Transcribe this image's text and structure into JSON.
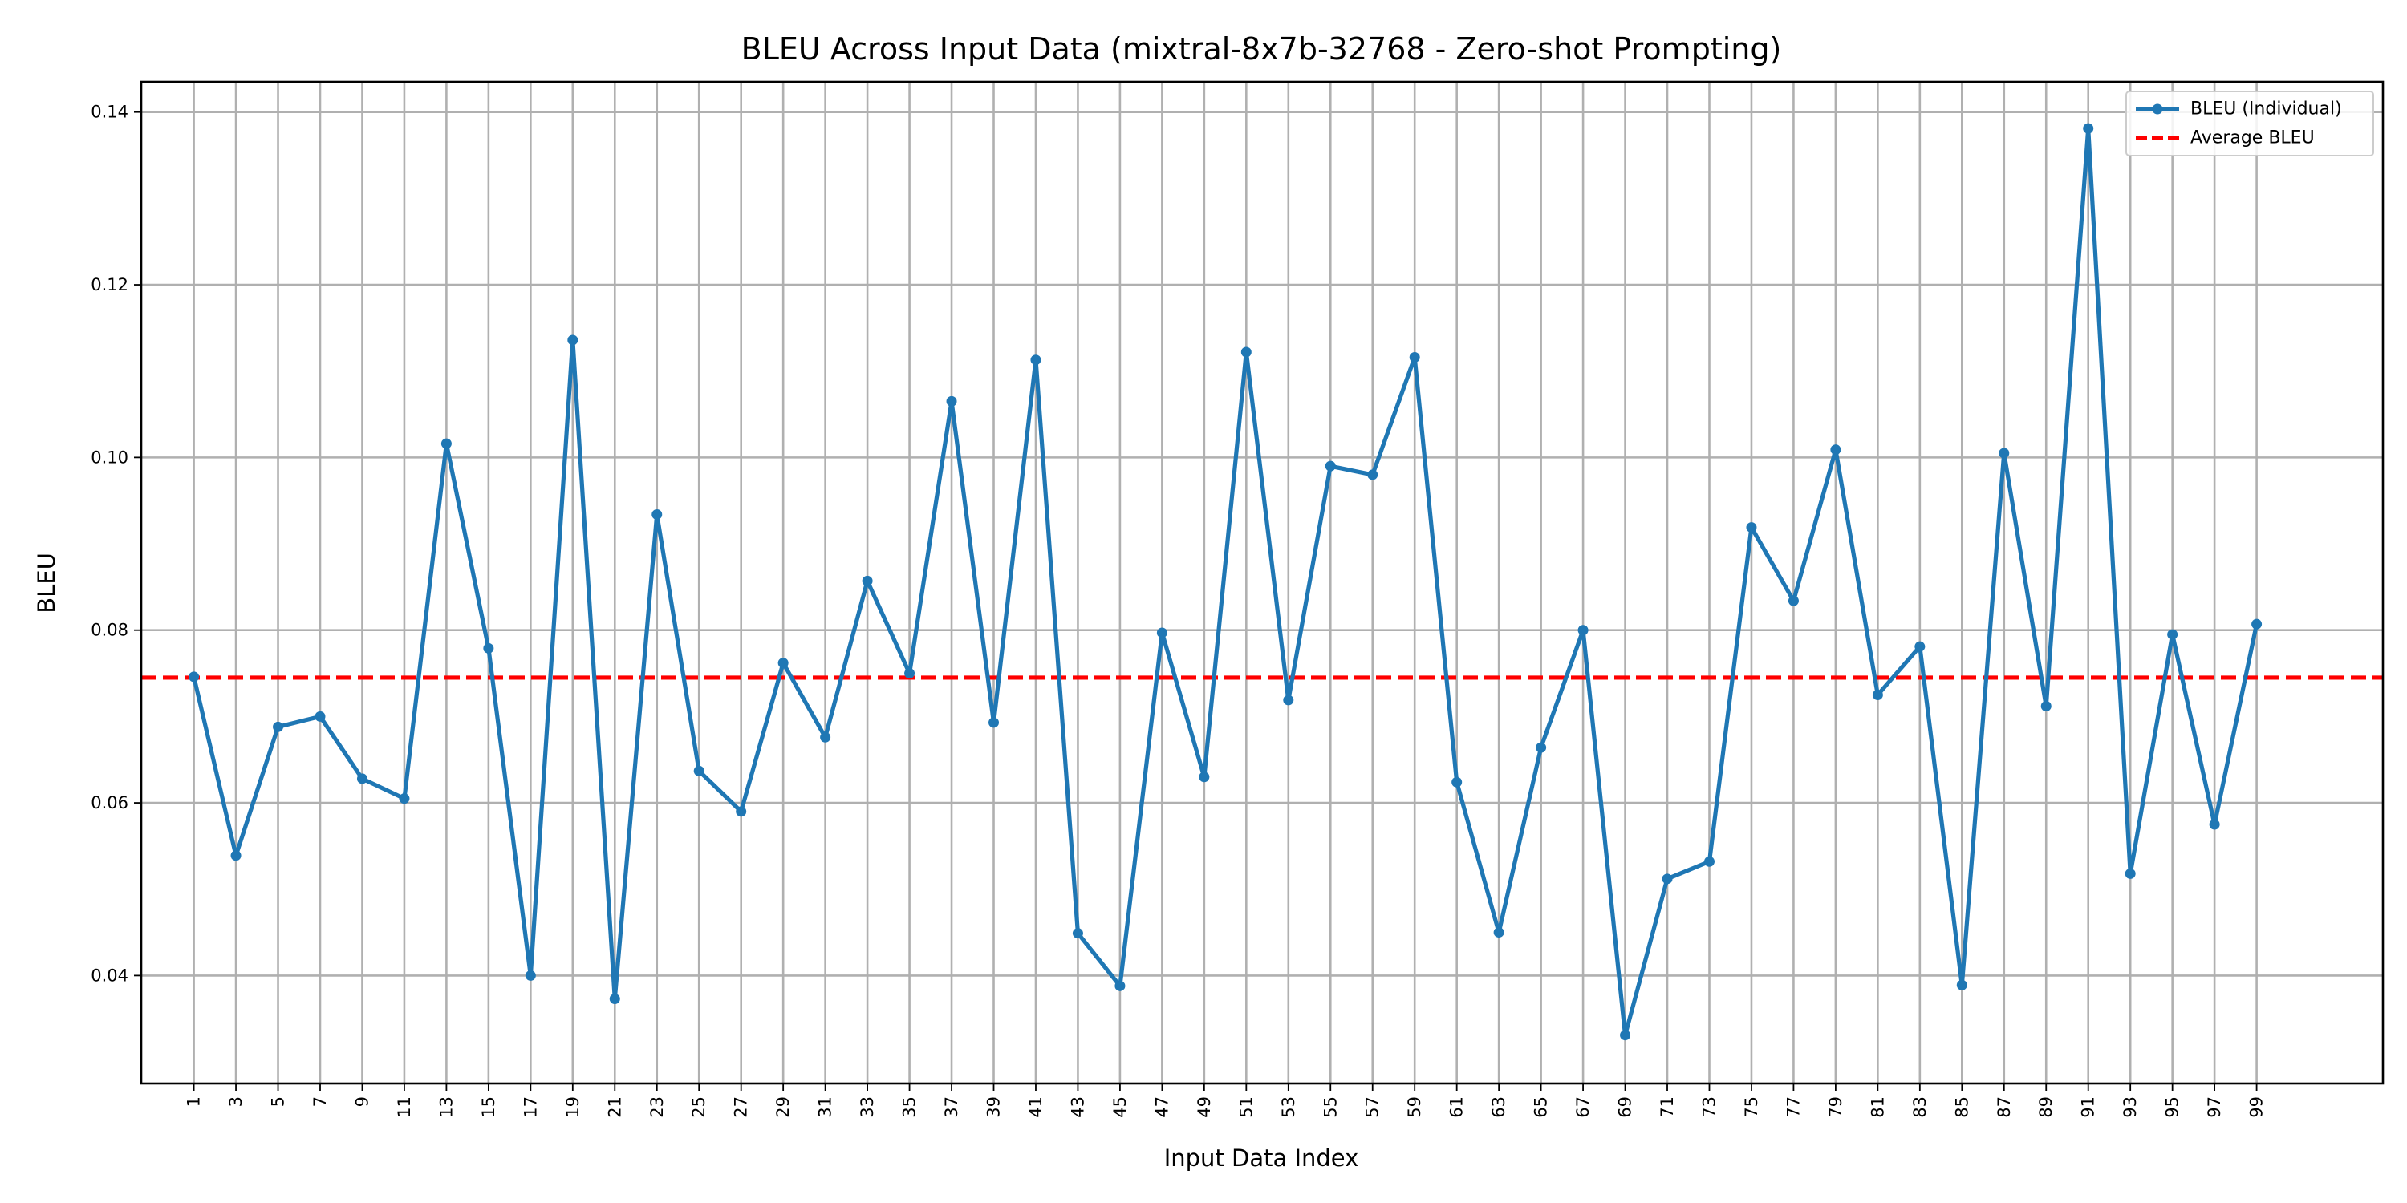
{
  "chart_data": {
    "type": "line",
    "title": "BLEU Across Input Data (mixtral-8x7b-32768 - Zero-shot Prompting)",
    "xlabel": "Input Data Index",
    "ylabel": "BLEU",
    "xlim": [
      -1.5,
      105
    ],
    "ylim": [
      0.0275,
      0.1435
    ],
    "grid": true,
    "legend_position": "top-right",
    "x_tick_labels": [
      "1",
      "3",
      "5",
      "7",
      "9",
      "11",
      "13",
      "15",
      "17",
      "19",
      "21",
      "23",
      "25",
      "27",
      "29",
      "31",
      "33",
      "35",
      "37",
      "39",
      "41",
      "43",
      "45",
      "47",
      "49",
      "51",
      "53",
      "55",
      "57",
      "59",
      "61",
      "63",
      "65",
      "67",
      "69",
      "71",
      "73",
      "75",
      "77",
      "79",
      "81",
      "83",
      "85",
      "87",
      "89",
      "91",
      "93",
      "95",
      "97",
      "99"
    ],
    "y_ticks": [
      0.04,
      0.06,
      0.08,
      0.1,
      0.12,
      0.14
    ],
    "y_tick_labels": [
      "0.04",
      "0.06",
      "0.08",
      "0.10",
      "0.12",
      "0.14"
    ],
    "series": [
      {
        "name": "BLEU (Individual)",
        "color": "#1f77b4",
        "x": [
          1,
          3,
          5,
          7,
          9,
          11,
          13,
          15,
          17,
          19,
          21,
          23,
          25,
          27,
          29,
          31,
          33,
          35,
          37,
          39,
          41,
          43,
          45,
          47,
          49,
          51,
          53,
          55,
          57,
          59,
          61,
          63,
          65,
          67,
          69,
          71,
          73,
          75,
          77,
          79,
          81,
          83,
          85,
          87,
          89,
          91,
          93,
          95,
          97,
          99
        ],
        "values": [
          0.0746,
          0.0539,
          0.0688,
          0.07,
          0.0628,
          0.0605,
          0.1016,
          0.0779,
          0.04,
          0.1136,
          0.0373,
          0.0934,
          0.0637,
          0.059,
          0.0762,
          0.0676,
          0.0857,
          0.075,
          0.1065,
          0.0693,
          0.1113,
          0.0449,
          0.0388,
          0.0797,
          0.063,
          0.1122,
          0.0719,
          0.099,
          0.098,
          0.1116,
          0.0624,
          0.045,
          0.0664,
          0.08,
          0.0331,
          0.0512,
          0.0532,
          0.0919,
          0.0834,
          0.1009,
          0.0725,
          0.0781,
          0.0389,
          0.1005,
          0.0712,
          0.1381,
          0.0518,
          0.0795,
          0.0575,
          0.0807
        ]
      }
    ],
    "reference_lines": [
      {
        "name": "Average BLEU",
        "value": 0.0745,
        "color": "#ff0000",
        "style": "dashed"
      }
    ]
  }
}
